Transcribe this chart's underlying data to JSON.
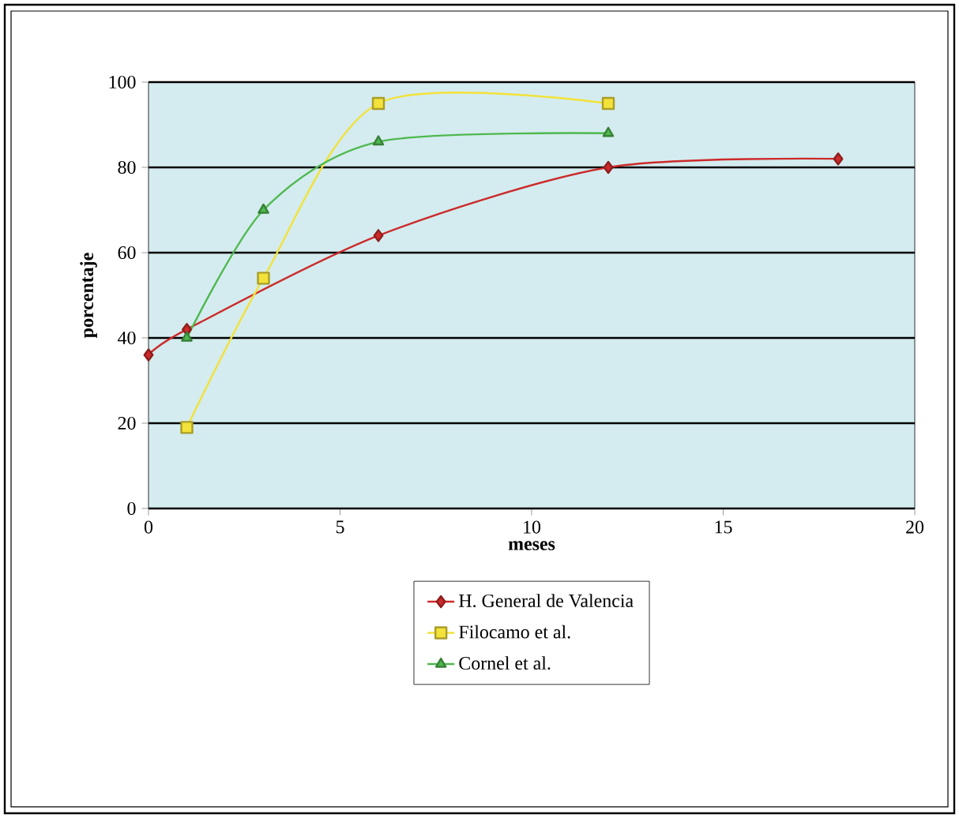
{
  "chart_data": {
    "type": "line",
    "xlabel": "meses",
    "ylabel": "porcentaje",
    "series": [
      {
        "name": "H. General de Valencia",
        "color": "#cc2a2a",
        "marker": "diamond",
        "x": [
          0,
          1,
          6,
          12,
          18
        ],
        "values": [
          36,
          42,
          64,
          80,
          82
        ]
      },
      {
        "name": "Filocamo et al.",
        "color": "#f2e23a",
        "marker": "square",
        "x": [
          1,
          3,
          6,
          12
        ],
        "values": [
          19,
          54,
          95,
          95
        ]
      },
      {
        "name": "Cornel et al.",
        "color": "#4fb84f",
        "marker": "triangle",
        "x": [
          1,
          3,
          6,
          12
        ],
        "values": [
          40,
          70,
          86,
          88
        ]
      }
    ],
    "xlim": [
      0,
      20
    ],
    "xticks": [
      0,
      5,
      10,
      15,
      20
    ],
    "ylim": [
      0,
      100
    ],
    "yticks": [
      0,
      20,
      40,
      60,
      80,
      100
    ],
    "grid": "y",
    "legend": "bottom",
    "line_style": "solid"
  }
}
